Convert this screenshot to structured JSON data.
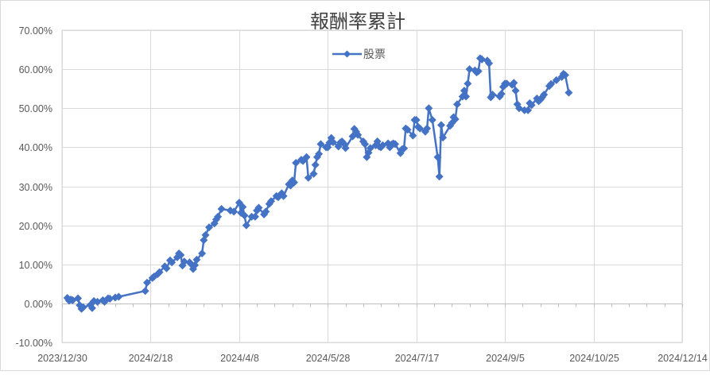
{
  "chart_data": {
    "type": "line",
    "title": "報酬率累計",
    "xlabel": "",
    "ylabel": "",
    "legend": {
      "position": "top",
      "entries": [
        "股票"
      ]
    },
    "grid": true,
    "x_range": [
      "2023-12-30",
      "2024-12-14"
    ],
    "x_ticks": [
      "2023/12/30",
      "2024/2/18",
      "2024/4/8",
      "2024/5/28",
      "2024/7/17",
      "2024/9/5",
      "2024/10/25",
      "2024/12/14"
    ],
    "ylim": [
      -0.1,
      0.7
    ],
    "y_ticks": [
      "-10.00%",
      "0.00%",
      "10.00%",
      "20.00%",
      "30.00%",
      "40.00%",
      "50.00%",
      "60.00%",
      "70.00%"
    ],
    "series_color": "#4472C4",
    "series": [
      {
        "name": "股票",
        "points": [
          [
            "2024-01-02",
            0.014
          ],
          [
            "2024-01-03",
            0.007
          ],
          [
            "2024-01-04",
            0.01
          ],
          [
            "2024-01-05",
            0.008
          ],
          [
            "2024-01-08",
            0.013
          ],
          [
            "2024-01-09",
            -0.005
          ],
          [
            "2024-01-10",
            -0.014
          ],
          [
            "2024-01-11",
            -0.01
          ],
          [
            "2024-01-15",
            -0.004
          ],
          [
            "2024-01-16",
            -0.012
          ],
          [
            "2024-01-17",
            0.006
          ],
          [
            "2024-01-19",
            0.004
          ],
          [
            "2024-01-22",
            0.008
          ],
          [
            "2024-01-23",
            0.004
          ],
          [
            "2024-01-25",
            0.013
          ],
          [
            "2024-01-26",
            0.012
          ],
          [
            "2024-01-29",
            0.015
          ],
          [
            "2024-01-31",
            0.017
          ],
          [
            "2024-02-15",
            0.032
          ],
          [
            "2024-02-16",
            0.053
          ],
          [
            "2024-02-19",
            0.065
          ],
          [
            "2024-02-20",
            0.069
          ],
          [
            "2024-02-22",
            0.075
          ],
          [
            "2024-02-23",
            0.08
          ],
          [
            "2024-02-26",
            0.095
          ],
          [
            "2024-02-27",
            0.09
          ],
          [
            "2024-02-29",
            0.11
          ],
          [
            "2024-03-01",
            0.105
          ],
          [
            "2024-03-04",
            0.118
          ],
          [
            "2024-03-05",
            0.128
          ],
          [
            "2024-03-06",
            0.124
          ],
          [
            "2024-03-07",
            0.097
          ],
          [
            "2024-03-08",
            0.107
          ],
          [
            "2024-03-11",
            0.105
          ],
          [
            "2024-03-12",
            0.1
          ],
          [
            "2024-03-13",
            0.088
          ],
          [
            "2024-03-14",
            0.098
          ],
          [
            "2024-03-15",
            0.112
          ],
          [
            "2024-03-18",
            0.128
          ],
          [
            "2024-03-19",
            0.162
          ],
          [
            "2024-03-20",
            0.175
          ],
          [
            "2024-03-22",
            0.195
          ],
          [
            "2024-03-25",
            0.205
          ],
          [
            "2024-03-26",
            0.215
          ],
          [
            "2024-03-27",
            0.222
          ],
          [
            "2024-03-29",
            0.242
          ],
          [
            "2024-04-03",
            0.238
          ],
          [
            "2024-04-05",
            0.235
          ],
          [
            "2024-04-08",
            0.258
          ],
          [
            "2024-04-09",
            0.232
          ],
          [
            "2024-04-10",
            0.247
          ],
          [
            "2024-04-11",
            0.225
          ],
          [
            "2024-04-12",
            0.2
          ],
          [
            "2024-04-15",
            0.222
          ],
          [
            "2024-04-17",
            0.222
          ],
          [
            "2024-04-18",
            0.238
          ],
          [
            "2024-04-19",
            0.245
          ],
          [
            "2024-04-22",
            0.228
          ],
          [
            "2024-04-23",
            0.235
          ],
          [
            "2024-04-25",
            0.255
          ],
          [
            "2024-04-26",
            0.262
          ],
          [
            "2024-04-29",
            0.275
          ],
          [
            "2024-04-30",
            0.272
          ],
          [
            "2024-05-02",
            0.282
          ],
          [
            "2024-05-03",
            0.275
          ],
          [
            "2024-05-06",
            0.305
          ],
          [
            "2024-05-07",
            0.302
          ],
          [
            "2024-05-08",
            0.315
          ],
          [
            "2024-05-09",
            0.31
          ],
          [
            "2024-05-10",
            0.36
          ],
          [
            "2024-05-13",
            0.368
          ],
          [
            "2024-05-14",
            0.365
          ],
          [
            "2024-05-15",
            0.37
          ],
          [
            "2024-05-16",
            0.375
          ],
          [
            "2024-05-17",
            0.322
          ],
          [
            "2024-05-20",
            0.332
          ],
          [
            "2024-05-21",
            0.355
          ],
          [
            "2024-05-22",
            0.375
          ],
          [
            "2024-05-23",
            0.383
          ],
          [
            "2024-05-24",
            0.408
          ],
          [
            "2024-05-27",
            0.4
          ],
          [
            "2024-05-28",
            0.4
          ],
          [
            "2024-05-29",
            0.412
          ],
          [
            "2024-05-30",
            0.424
          ],
          [
            "2024-05-31",
            0.413
          ],
          [
            "2024-06-03",
            0.402
          ],
          [
            "2024-06-04",
            0.412
          ],
          [
            "2024-06-05",
            0.415
          ],
          [
            "2024-06-06",
            0.41
          ],
          [
            "2024-06-07",
            0.398
          ],
          [
            "2024-06-11",
            0.428
          ],
          [
            "2024-06-12",
            0.447
          ],
          [
            "2024-06-13",
            0.44
          ],
          [
            "2024-06-14",
            0.432
          ],
          [
            "2024-06-17",
            0.415
          ],
          [
            "2024-06-18",
            0.408
          ],
          [
            "2024-06-19",
            0.375
          ],
          [
            "2024-06-20",
            0.386
          ],
          [
            "2024-06-21",
            0.398
          ],
          [
            "2024-06-24",
            0.405
          ],
          [
            "2024-06-25",
            0.415
          ],
          [
            "2024-06-26",
            0.402
          ],
          [
            "2024-06-27",
            0.4
          ],
          [
            "2024-06-28",
            0.405
          ],
          [
            "2024-07-01",
            0.41
          ],
          [
            "2024-07-02",
            0.4
          ],
          [
            "2024-07-03",
            0.407
          ],
          [
            "2024-07-04",
            0.41
          ],
          [
            "2024-07-05",
            0.408
          ],
          [
            "2024-07-08",
            0.385
          ],
          [
            "2024-07-09",
            0.395
          ],
          [
            "2024-07-10",
            0.397
          ],
          [
            "2024-07-11",
            0.448
          ],
          [
            "2024-07-12",
            0.445
          ],
          [
            "2024-07-15",
            0.43
          ],
          [
            "2024-07-16",
            0.47
          ],
          [
            "2024-07-17",
            0.47
          ],
          [
            "2024-07-18",
            0.452
          ],
          [
            "2024-07-19",
            0.448
          ],
          [
            "2024-07-22",
            0.44
          ],
          [
            "2024-07-23",
            0.448
          ],
          [
            "2024-07-24",
            0.5
          ],
          [
            "2024-07-26",
            0.47
          ],
          [
            "2024-07-29",
            0.375
          ],
          [
            "2024-07-30",
            0.325
          ],
          [
            "2024-07-31",
            0.457
          ],
          [
            "2024-08-01",
            0.425
          ],
          [
            "2024-08-05",
            0.455
          ],
          [
            "2024-08-06",
            0.462
          ],
          [
            "2024-08-07",
            0.477
          ],
          [
            "2024-08-08",
            0.472
          ],
          [
            "2024-08-09",
            0.51
          ],
          [
            "2024-08-12",
            0.53
          ],
          [
            "2024-08-13",
            0.545
          ],
          [
            "2024-08-14",
            0.53
          ],
          [
            "2024-08-15",
            0.563
          ],
          [
            "2024-08-16",
            0.6
          ],
          [
            "2024-08-19",
            0.597
          ],
          [
            "2024-08-20",
            0.592
          ],
          [
            "2024-08-21",
            0.595
          ],
          [
            "2024-08-22",
            0.628
          ],
          [
            "2024-08-23",
            0.625
          ],
          [
            "2024-08-26",
            0.622
          ],
          [
            "2024-08-27",
            0.615
          ],
          [
            "2024-08-28",
            0.528
          ],
          [
            "2024-08-29",
            0.535
          ],
          [
            "2024-09-02",
            0.53
          ],
          [
            "2024-09-03",
            0.537
          ],
          [
            "2024-09-04",
            0.555
          ],
          [
            "2024-09-05",
            0.563
          ],
          [
            "2024-09-06",
            0.563
          ],
          [
            "2024-09-09",
            0.56
          ],
          [
            "2024-09-10",
            0.565
          ],
          [
            "2024-09-11",
            0.545
          ],
          [
            "2024-09-12",
            0.51
          ],
          [
            "2024-09-13",
            0.5
          ],
          [
            "2024-09-16",
            0.495
          ],
          [
            "2024-09-18",
            0.495
          ],
          [
            "2024-09-19",
            0.513
          ],
          [
            "2024-09-20",
            0.508
          ],
          [
            "2024-09-23",
            0.525
          ],
          [
            "2024-09-24",
            0.518
          ],
          [
            "2024-09-25",
            0.522
          ],
          [
            "2024-09-26",
            0.528
          ],
          [
            "2024-09-27",
            0.535
          ],
          [
            "2024-09-30",
            0.557
          ],
          [
            "2024-10-01",
            0.562
          ],
          [
            "2024-10-04",
            0.572
          ],
          [
            "2024-10-07",
            0.58
          ],
          [
            "2024-10-08",
            0.588
          ],
          [
            "2024-10-09",
            0.585
          ],
          [
            "2024-10-11",
            0.54
          ]
        ]
      }
    ]
  }
}
